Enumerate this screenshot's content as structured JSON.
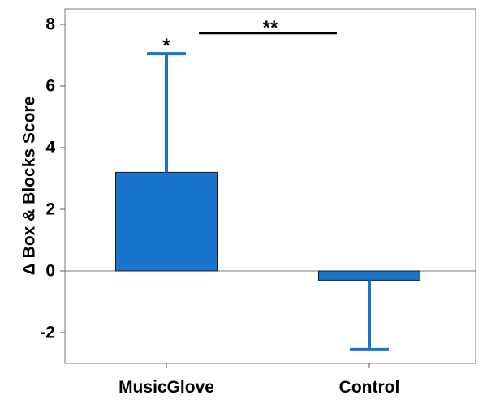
{
  "chart_data": {
    "type": "bar",
    "ylabel": "Δ Box & Blocks Score",
    "ylim": [
      -3.0,
      8.5
    ],
    "yticks": [
      -2,
      0,
      2,
      4,
      6,
      8
    ],
    "categories": [
      "MusicGlove",
      "Control"
    ],
    "values": [
      3.2,
      -0.3
    ],
    "error_bars": [
      {
        "category": "MusicGlove",
        "upper": 7.05
      },
      {
        "category": "Control",
        "lower": -2.55
      }
    ],
    "annotations": [
      {
        "text": "*",
        "category": "MusicGlove",
        "meaning": "within-group significance"
      },
      {
        "text": "**",
        "between": [
          "MusicGlove",
          "Control"
        ],
        "meaning": "between-group significance"
      }
    ],
    "colors": {
      "bar": "#1874cd",
      "bar_edge": "#1a1a1a",
      "error": "#1874cd"
    },
    "grid": false,
    "legend": "none"
  }
}
